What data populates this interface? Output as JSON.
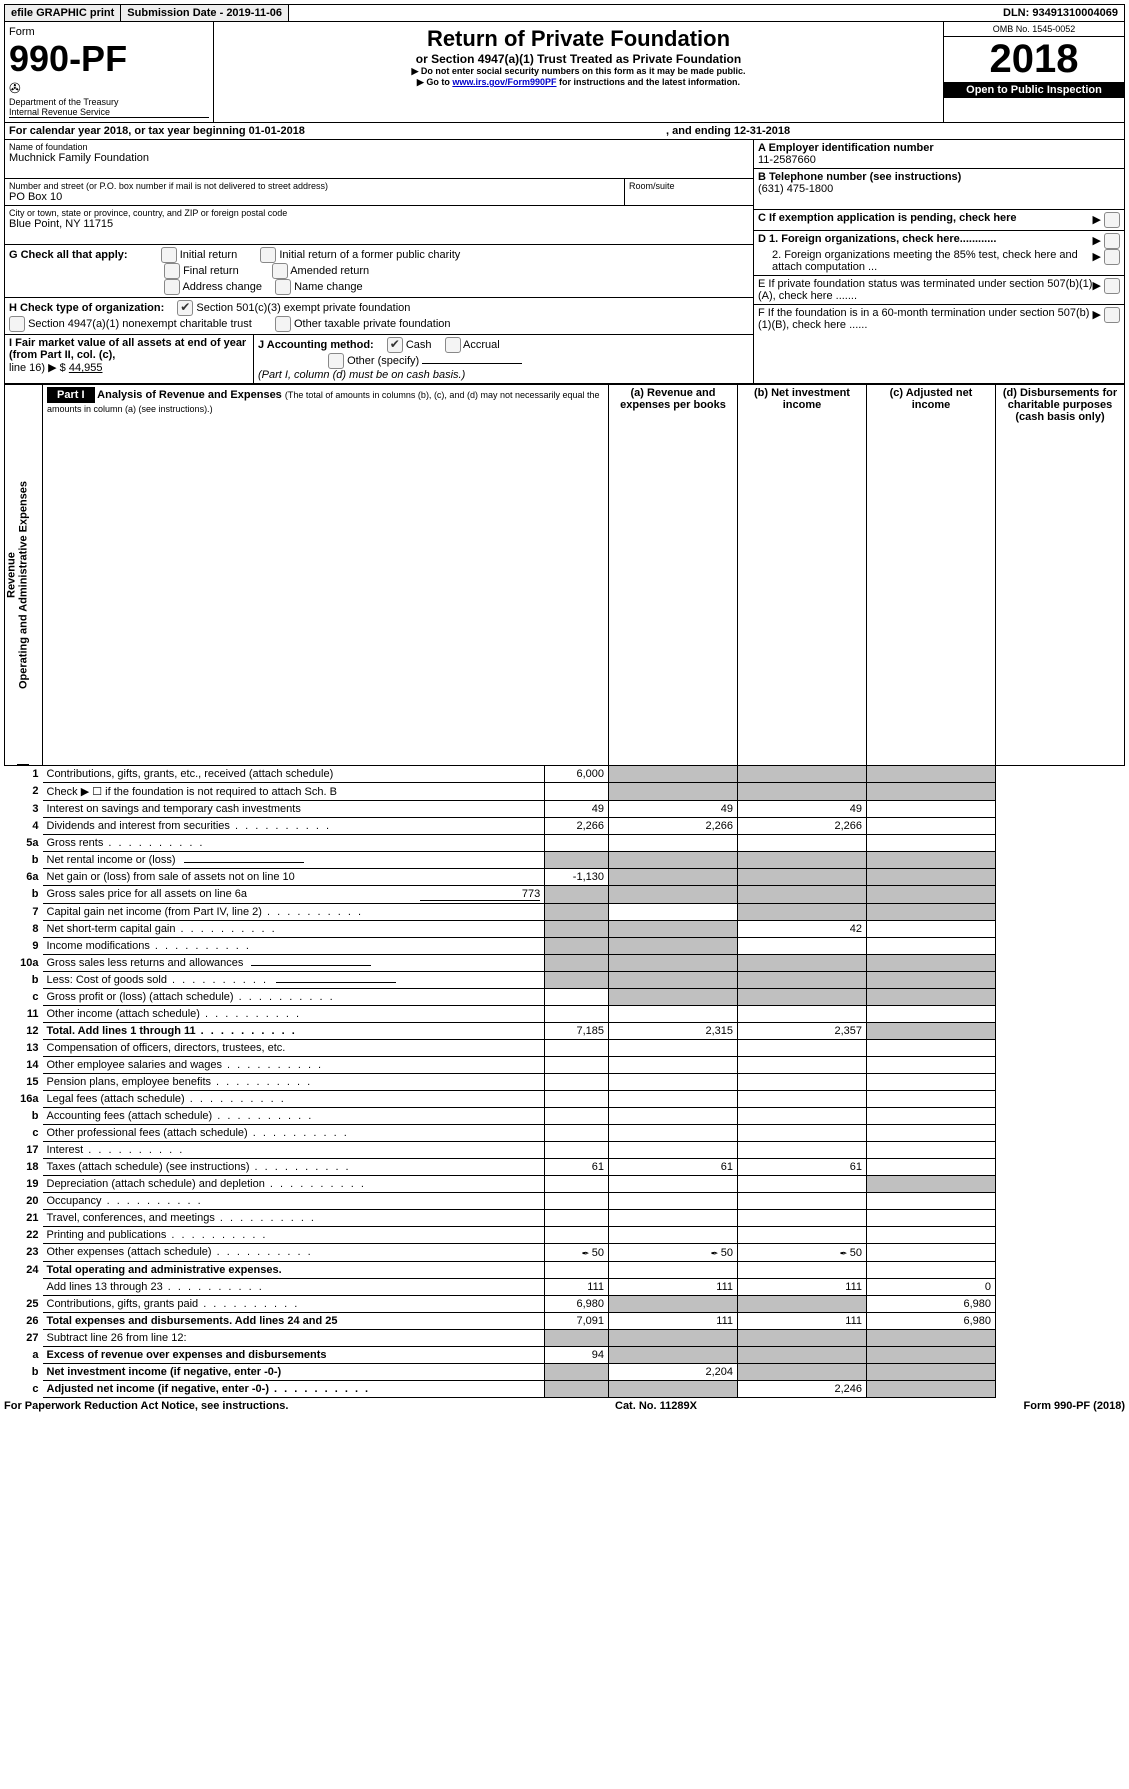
{
  "topbar": {
    "efile": "efile GRAPHIC print",
    "submission_label": "Submission Date - 2019-11-06",
    "dln_label": "DLN: 93491310004069"
  },
  "header": {
    "form_word": "Form",
    "form_number": "990-PF",
    "dept": "Department of the Treasury",
    "irs": "Internal Revenue Service",
    "title": "Return of Private Foundation",
    "subtitle": "or Section 4947(a)(1) Trust Treated as Private Foundation",
    "note1": "▶ Do not enter social security numbers on this form as it may be made public.",
    "note2_pre": "▶ Go to ",
    "note2_link": "www.irs.gov/Form990PF",
    "note2_post": " for instructions and the latest information.",
    "omb": "OMB No. 1545-0052",
    "year": "2018",
    "inspection": "Open to Public Inspection"
  },
  "period": {
    "text_a": "For calendar year 2018, or tax year beginning 01-01-2018",
    "text_b": ", and ending 12-31-2018"
  },
  "id_block": {
    "name_label": "Name of foundation",
    "name": "Muchnick Family Foundation",
    "addr_label": "Number and street (or P.O. box number if mail is not delivered to street address)",
    "addr": "PO Box 10",
    "room_label": "Room/suite",
    "city_label": "City or town, state or province, country, and ZIP or foreign postal code",
    "city": "Blue Point, NY  11715",
    "a_label": "A Employer identification number",
    "a_val": "11-2587660",
    "b_label": "B Telephone number (see instructions)",
    "b_val": "(631) 475-1800",
    "c_label": "C If exemption application is pending, check here",
    "d1": "D 1. Foreign organizations, check here............",
    "d2": "2. Foreign organizations meeting the 85% test, check here and attach computation ...",
    "e": "E  If private foundation status was terminated under section 507(b)(1)(A), check here .......",
    "f": "F  If the foundation is in a 60-month termination under section 507(b)(1)(B), check here ......"
  },
  "g": {
    "label": "G Check all that apply:",
    "opts": [
      "Initial return",
      "Initial return of a former public charity",
      "Final return",
      "Amended return",
      "Address change",
      "Name change"
    ]
  },
  "h": {
    "label": "H Check type of organization:",
    "o1": "Section 501(c)(3) exempt private foundation",
    "o2": "Section 4947(a)(1) nonexempt charitable trust",
    "o3": "Other taxable private foundation"
  },
  "i": {
    "label": "I Fair market value of all assets at end of year (from Part II, col. (c),",
    "line": "line 16) ▶ $",
    "val": "44,955"
  },
  "j": {
    "label": "J Accounting method:",
    "cash": "Cash",
    "accrual": "Accrual",
    "other": "Other (specify)",
    "note": "(Part I, column (d) must be on cash basis.)"
  },
  "part1": {
    "label": "Part I",
    "title": "Analysis of Revenue and Expenses",
    "title_note": "(The total of amounts in columns (b), (c), and (d) may not necessarily equal the amounts in column (a) (see instructions).)",
    "col_a": "(a)  Revenue and expenses per books",
    "col_b": "(b)  Net investment income",
    "col_c": "(c)  Adjusted net income",
    "col_d": "(d)  Disbursements for charitable purposes (cash basis only)"
  },
  "sections": {
    "revenue": "Revenue",
    "opex": "Operating and Administrative Expenses"
  },
  "rows": [
    {
      "n": "1",
      "t": "Contributions, gifts, grants, etc., received (attach schedule)",
      "a": "6,000",
      "shade_bcd": true
    },
    {
      "n": "2",
      "t": "Check ▶ ☐ if the foundation is not required to attach Sch. B",
      "shade_bcd": true,
      "dotsTail": true
    },
    {
      "n": "3",
      "t": "Interest on savings and temporary cash investments",
      "a": "49",
      "b": "49",
      "c": "49"
    },
    {
      "n": "4",
      "t": "Dividends and interest from securities",
      "a": "2,266",
      "b": "2,266",
      "c": "2,266",
      "dots": true
    },
    {
      "n": "5a",
      "t": "Gross rents",
      "dots": true
    },
    {
      "n": "b",
      "t": "Net rental income or (loss)",
      "blank_input": true,
      "shade_abcd": true
    },
    {
      "n": "6a",
      "t": "Net gain or (loss) from sale of assets not on line 10",
      "a": "-1,130",
      "shade_bcd": true
    },
    {
      "n": "b",
      "t": "Gross sales price for all assets on line 6a",
      "side_val": "773",
      "shade_abcd": true
    },
    {
      "n": "7",
      "t": "Capital gain net income (from Part IV, line 2)",
      "dots": true,
      "shade_a": true,
      "shade_cd": true
    },
    {
      "n": "8",
      "t": "Net short-term capital gain",
      "dots": true,
      "shade_ab": true,
      "c": "42"
    },
    {
      "n": "9",
      "t": "Income modifications",
      "dots": true,
      "shade_ab": true
    },
    {
      "n": "10a",
      "t": "Gross sales less returns and allowances",
      "blank_input": true,
      "shade_abcd": true
    },
    {
      "n": "b",
      "t": "Less: Cost of goods sold",
      "dots": true,
      "blank_input": true,
      "shade_abcd": true
    },
    {
      "n": "c",
      "t": "Gross profit or (loss) (attach schedule)",
      "dots": true,
      "shade_bcd_partial": true
    },
    {
      "n": "11",
      "t": "Other income (attach schedule)",
      "dots": true
    },
    {
      "n": "12",
      "t": "Total. Add lines 1 through 11",
      "bold": true,
      "dots": true,
      "a": "7,185",
      "b": "2,315",
      "c": "2,357",
      "shade_d": true
    },
    {
      "n": "13",
      "t": "Compensation of officers, directors, trustees, etc.",
      "sec": "opex"
    },
    {
      "n": "14",
      "t": "Other employee salaries and wages",
      "dots": true
    },
    {
      "n": "15",
      "t": "Pension plans, employee benefits",
      "dots": true
    },
    {
      "n": "16a",
      "t": "Legal fees (attach schedule)",
      "dots": true
    },
    {
      "n": "b",
      "t": "Accounting fees (attach schedule)",
      "dots": true
    },
    {
      "n": "c",
      "t": "Other professional fees (attach schedule)",
      "dots": true
    },
    {
      "n": "17",
      "t": "Interest",
      "dots": true
    },
    {
      "n": "18",
      "t": "Taxes (attach schedule) (see instructions)",
      "dots": true,
      "a": "61",
      "b": "61",
      "c": "61"
    },
    {
      "n": "19",
      "t": "Depreciation (attach schedule) and depletion",
      "dots": true,
      "shade_d": true
    },
    {
      "n": "20",
      "t": "Occupancy",
      "dots": true
    },
    {
      "n": "21",
      "t": "Travel, conferences, and meetings",
      "dots": true
    },
    {
      "n": "22",
      "t": "Printing and publications",
      "dots": true
    },
    {
      "n": "23",
      "t": "Other expenses (attach schedule)",
      "dots": true,
      "a": "50",
      "b": "50",
      "c": "50",
      "attach_icon": true
    },
    {
      "n": "24",
      "t": "Total operating and administrative expenses.",
      "bold": true
    },
    {
      "n": "",
      "t": "Add lines 13 through 23",
      "dots": true,
      "a": "111",
      "b": "111",
      "c": "111",
      "d": "0"
    },
    {
      "n": "25",
      "t": "Contributions, gifts, grants paid",
      "dots": true,
      "a": "6,980",
      "shade_bc": true,
      "d": "6,980"
    },
    {
      "n": "26",
      "t": "Total expenses and disbursements. Add lines 24 and 25",
      "bold": true,
      "a": "7,091",
      "b": "111",
      "c": "111",
      "d": "6,980"
    },
    {
      "n": "27",
      "t": "Subtract line 26 from line 12:",
      "shade_abcd": true,
      "sec": "none"
    },
    {
      "n": "a",
      "t": "Excess of revenue over expenses and disbursements",
      "bold": true,
      "a": "94",
      "shade_bcd": true
    },
    {
      "n": "b",
      "t": "Net investment income (if negative, enter -0-)",
      "bold": true,
      "shade_a": true,
      "b": "2,204",
      "shade_cd": true
    },
    {
      "n": "c",
      "t": "Adjusted net income (if negative, enter -0-)",
      "bold": true,
      "dots": true,
      "shade_ab": true,
      "c": "2,246",
      "shade_d": true
    }
  ],
  "footer": {
    "left": "For Paperwork Reduction Act Notice, see instructions.",
    "mid": "Cat. No. 11289X",
    "right": "Form 990-PF (2018)"
  }
}
